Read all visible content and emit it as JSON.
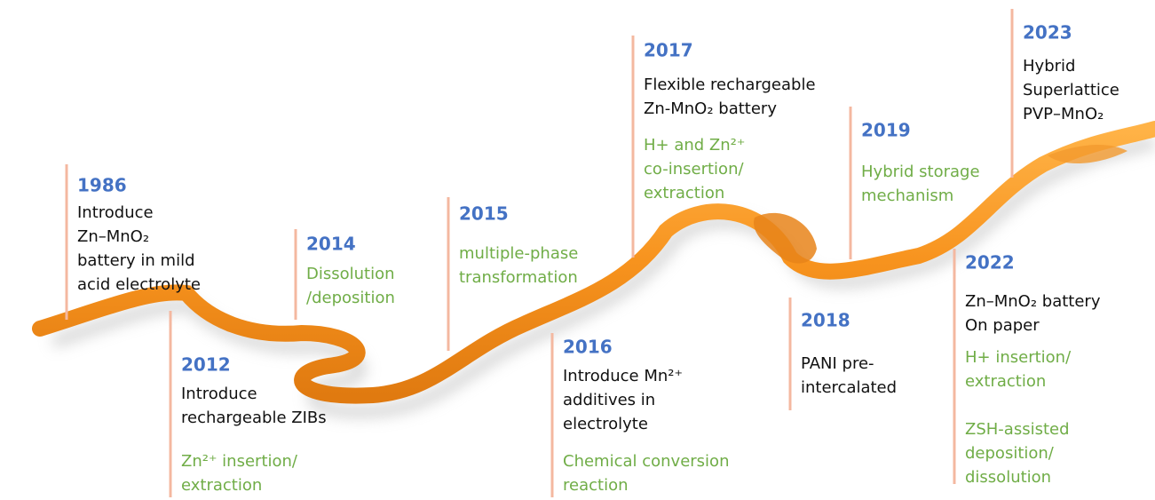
{
  "events": [
    {
      "year": "1986",
      "text": [
        "Introduce",
        "Zn–MnO₂",
        "battery in mild",
        "acid electrolyte"
      ],
      "notes": []
    },
    {
      "year": "2012",
      "text": [
        "Introduce",
        "rechargeable ZIBs"
      ],
      "notes": [
        [
          "Zn²⁺ insertion/",
          "extraction"
        ]
      ]
    },
    {
      "year": "2014",
      "text": [],
      "notes": [
        [
          "Dissolution",
          "/deposition"
        ]
      ]
    },
    {
      "year": "2015",
      "text": [],
      "notes": [
        [
          "multiple-phase",
          "transformation"
        ]
      ]
    },
    {
      "year": "2016",
      "text": [
        "Introduce Mn²⁺",
        "additives in",
        "electrolyte"
      ],
      "notes": [
        [
          "Chemical conversion",
          "reaction"
        ]
      ]
    },
    {
      "year": "2017",
      "text": [
        "Flexible rechargeable",
        "Zn-MnO₂ battery"
      ],
      "notes": [
        [
          "H+ and Zn²⁺",
          "co-insertion/",
          "extraction"
        ]
      ]
    },
    {
      "year": "2018",
      "text": [
        "PANI pre-",
        "intercalated"
      ],
      "notes": []
    },
    {
      "year": "2019",
      "text": [],
      "notes": [
        [
          "Hybrid storage",
          "mechanism"
        ]
      ]
    },
    {
      "year": "2022",
      "text": [
        "Zn–MnO₂ battery",
        "On paper"
      ],
      "notes": [
        [
          "H+ insertion/",
          "extraction"
        ],
        [
          "ZSH-assisted",
          "deposition/",
          "dissolution"
        ]
      ]
    },
    {
      "year": "2023",
      "text": [
        "Hybrid",
        "Superlattice",
        "PVP–MnO₂"
      ],
      "notes": []
    }
  ]
}
